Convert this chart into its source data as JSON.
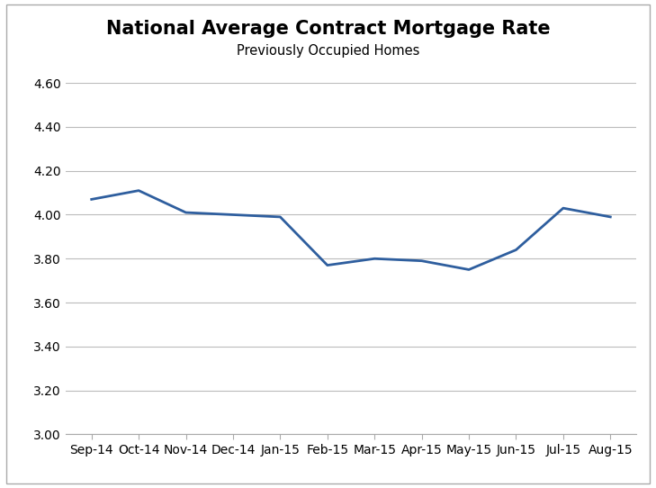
{
  "title": "National Average Contract Mortgage Rate",
  "subtitle": "Previously Occupied Homes",
  "categories": [
    "Sep-14",
    "Oct-14",
    "Nov-14",
    "Dec-14",
    "Jan-15",
    "Feb-15",
    "Mar-15",
    "Apr-15",
    "May-15",
    "Jun-15",
    "Jul-15",
    "Aug-15"
  ],
  "values": [
    4.07,
    4.11,
    4.01,
    4.0,
    3.99,
    3.77,
    3.8,
    3.79,
    3.75,
    3.84,
    4.03,
    3.99
  ],
  "line_color": "#2E5E9E",
  "line_width": 2.0,
  "ylim": [
    3.0,
    4.6
  ],
  "yticks": [
    3.0,
    3.2,
    3.4,
    3.6,
    3.8,
    4.0,
    4.2,
    4.4,
    4.6
  ],
  "title_fontsize": 15,
  "subtitle_fontsize": 10.5,
  "tick_fontsize": 10,
  "background_color": "#FFFFFF",
  "grid_color": "#BBBBBB",
  "title_fontweight": "bold",
  "border_color": "#AAAAAA"
}
